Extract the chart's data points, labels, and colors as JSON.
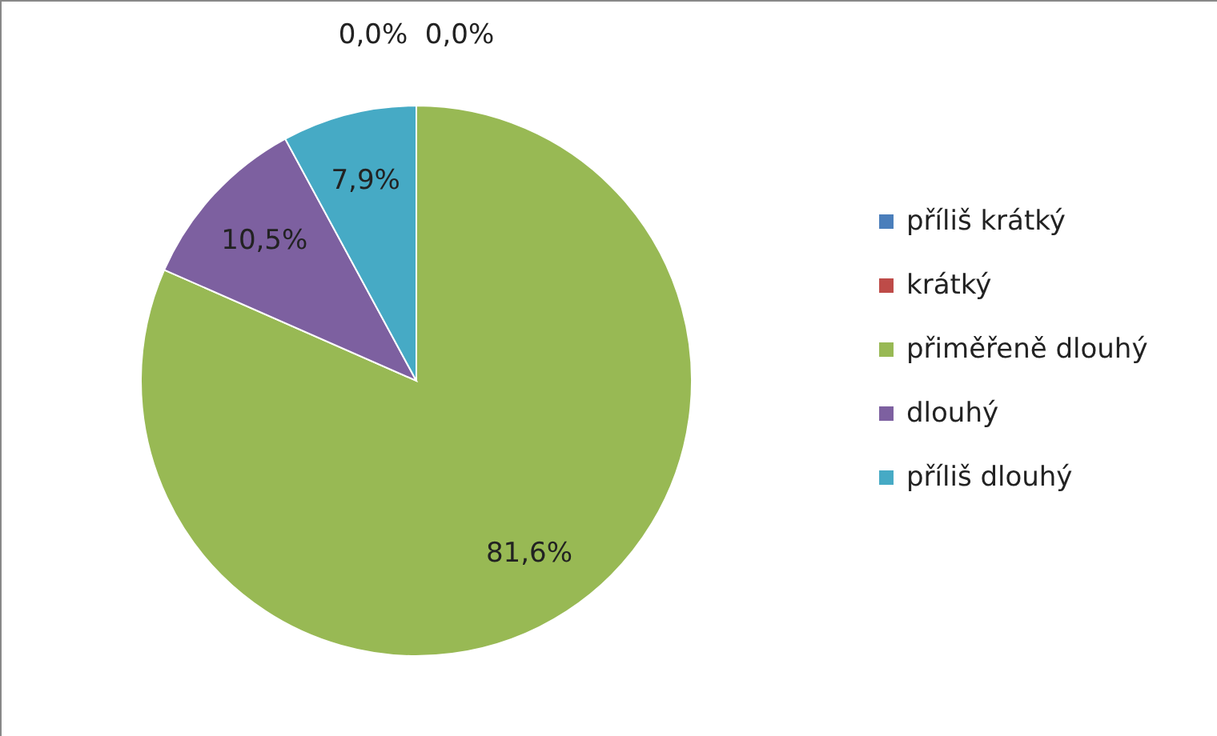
{
  "chart_data": {
    "type": "pie",
    "categories": [
      "příliš krátký",
      "krátký",
      "přiměřeně dlouhý",
      "dlouhý",
      "příliš dlouhý"
    ],
    "values": [
      0,
      0,
      81.6,
      10.5,
      7.9
    ],
    "value_labels": [
      "0,0%",
      "0,0%",
      "81,6%",
      "10,5%",
      "7,9%"
    ],
    "colors": [
      "#4a7ebb",
      "#be4b48",
      "#98b954",
      "#7d60a0",
      "#46aac5"
    ],
    "legend": "right"
  }
}
